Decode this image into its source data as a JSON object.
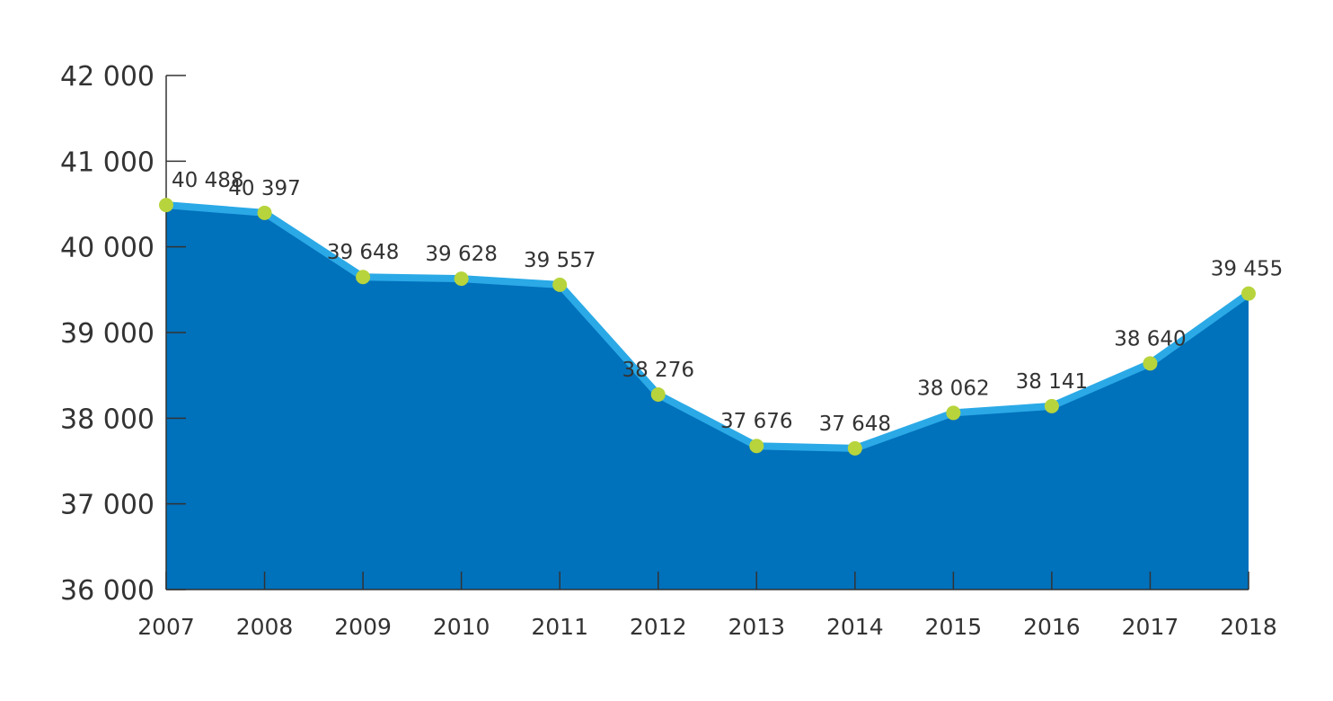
{
  "chart_data": {
    "type": "area",
    "categories": [
      "2007",
      "2008",
      "2009",
      "2010",
      "2011",
      "2012",
      "2013",
      "2014",
      "2015",
      "2016",
      "2017",
      "2018"
    ],
    "values": [
      40488,
      40397,
      39648,
      39628,
      39557,
      38276,
      37676,
      37648,
      38062,
      38141,
      38640,
      39455
    ],
    "data_labels": [
      "40 488",
      "40 397",
      "39 648",
      "39 628",
      "39 557",
      "38 276",
      "37 676",
      "37 648",
      "38 062",
      "38 141",
      "38 640",
      "39 455"
    ],
    "ylim": [
      36000,
      42000
    ],
    "yticks": [
      36000,
      37000,
      38000,
      39000,
      40000,
      41000,
      42000
    ],
    "ytick_labels": [
      "36 000",
      "37 000",
      "38 000",
      "39 000",
      "40 000",
      "41 000",
      "42 000"
    ],
    "title": "",
    "xlabel": "",
    "ylabel": "",
    "grid": false,
    "legend": "none",
    "colors": {
      "fill": "#0071bb",
      "line": "#2aa9e6",
      "marker": "#b7d43c",
      "axis": "#333333",
      "text": "#333333"
    }
  }
}
